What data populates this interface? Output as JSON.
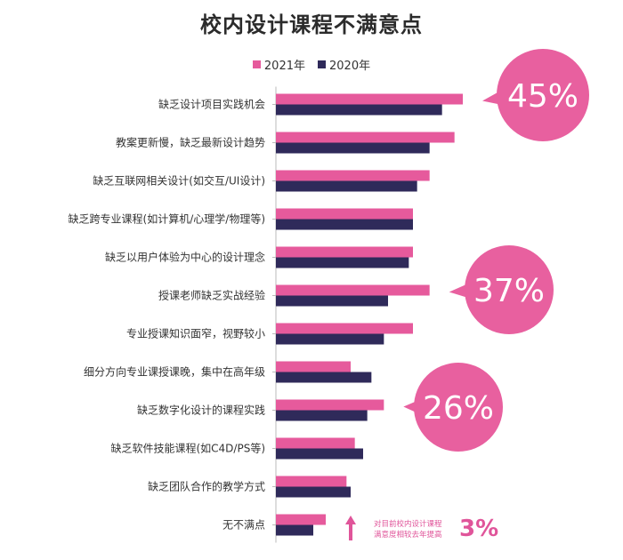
{
  "title": "校内设计课程不满意点",
  "legend": [
    {
      "label": "2021年",
      "color": "#e65a9c"
    },
    {
      "label": "2020年",
      "color": "#2f2a5a"
    }
  ],
  "chart_data": {
    "type": "bar",
    "orientation": "horizontal",
    "title": "校内设计课程不满意点",
    "categories": [
      "缺乏设计项目实践机会",
      "教案更新慢，缺乏最新设计趋势",
      "缺乏互联网相关设计(如交互/UI设计)",
      "缺乏跨专业课程(如计算机/心理学/物理等)",
      "缺乏以用户体验为中心的设计理念",
      "授课老师缺乏实战经验",
      "专业授课知识面窄，视野较小",
      "细分方向专业课授课晚，集中在高年级",
      "缺乏数字化设计的课程实践",
      "缺乏软件技能课程(如C4D/PS等)",
      "缺乏团队合作的教学方式",
      "无不满点"
    ],
    "series": [
      {
        "name": "2021年",
        "color": "#e65a9c",
        "values": [
          45,
          43,
          37,
          33,
          33,
          37,
          33,
          18,
          26,
          19,
          17,
          12
        ]
      },
      {
        "name": "2020年",
        "color": "#2f2a5a",
        "values": [
          40,
          37,
          34,
          33,
          32,
          27,
          26,
          23,
          22,
          21,
          18,
          9
        ]
      }
    ],
    "xlim": [
      0,
      50
    ],
    "grid": false,
    "legend_position": "top",
    "callouts": [
      {
        "category": "缺乏设计项目实践机会",
        "label": "45%"
      },
      {
        "category": "授课老师缺乏实战经验",
        "label": "37%"
      },
      {
        "category": "缺乏数字化设计的课程实践",
        "label": "26%"
      }
    ]
  },
  "footnote": {
    "arrow_icon": "up-arrow-icon",
    "lines": [
      "对目前校内设计课程",
      "满意度相较去年提高"
    ],
    "value": "3%"
  }
}
